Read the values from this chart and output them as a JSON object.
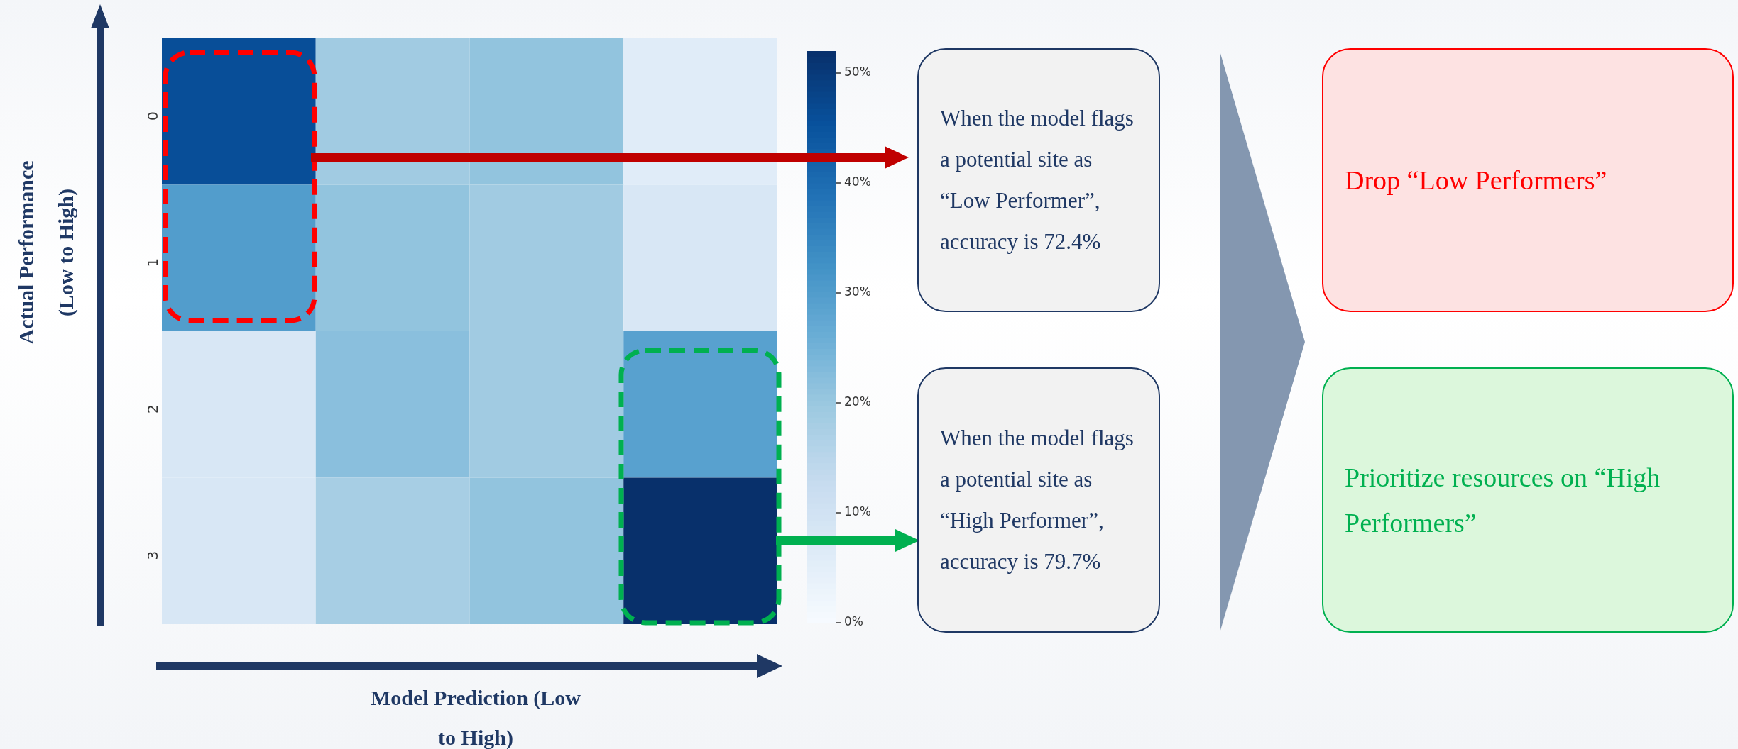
{
  "chart_data": {
    "type": "heatmap",
    "xlabel": "Model Prediction (Low to High)",
    "ylabel": "Actual Performance (Low to High)",
    "categories": [
      null,
      null,
      null,
      null
    ],
    "y_categories": [
      "0",
      "1",
      "2",
      "3"
    ],
    "cells": [
      [
        46,
        19,
        21,
        6
      ],
      [
        30,
        21,
        19,
        8
      ],
      [
        8,
        22,
        19,
        29
      ],
      [
        8,
        18,
        21,
        52
      ]
    ],
    "clim": [
      0,
      52
    ],
    "cticks": [
      {
        "value": 0,
        "label": "0%"
      },
      {
        "value": 10,
        "label": "10%"
      },
      {
        "value": 20,
        "label": "20%"
      },
      {
        "value": 30,
        "label": "30%"
      },
      {
        "value": 40,
        "label": "40%"
      },
      {
        "value": 50,
        "label": "50%"
      }
    ],
    "tick_labels": "y",
    "annotations": [
      "When the model flags a potential site as “Low Performer”, accuracy is 72.4%",
      "When the model flags a potential site as “High Performer”, accuracy is 79.7%",
      "Drop “Low Performers”",
      "Prioritize resources on “High Performers”"
    ]
  }
}
